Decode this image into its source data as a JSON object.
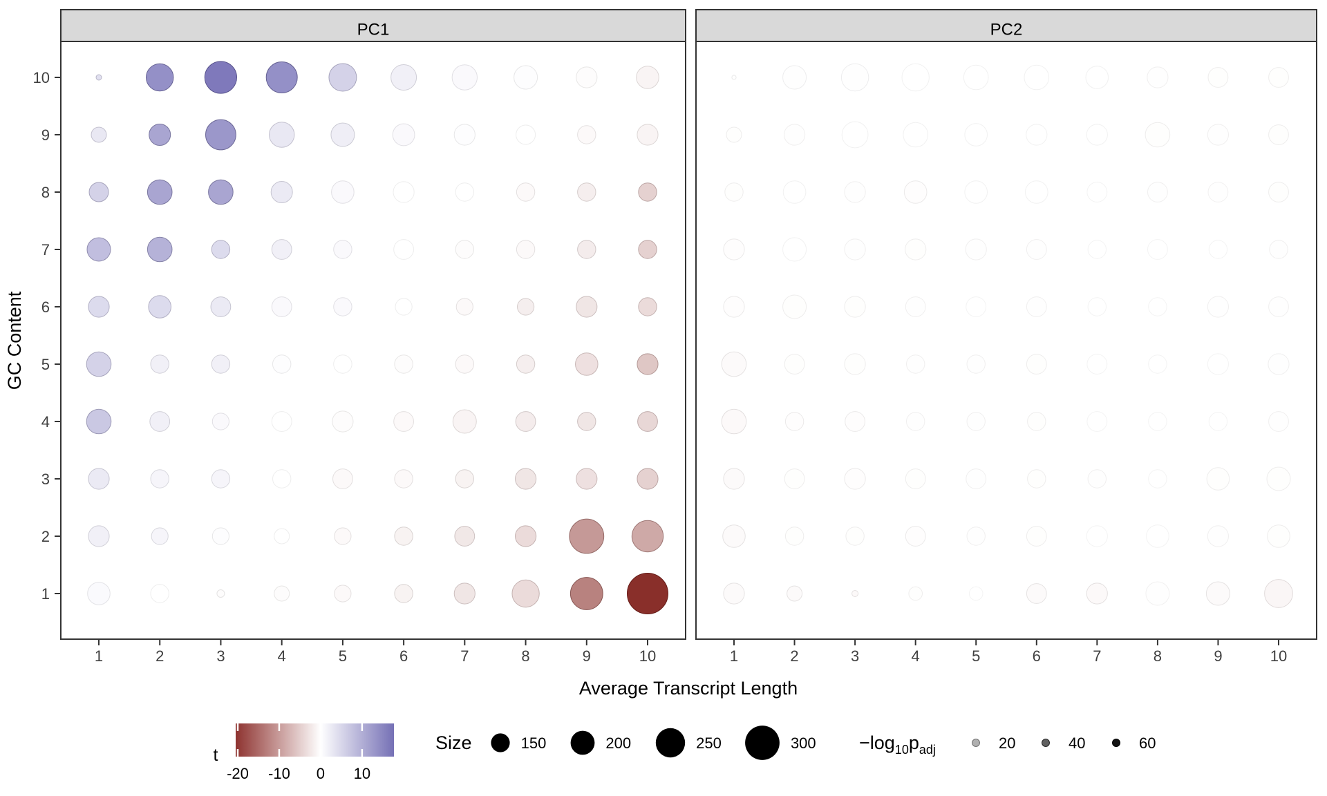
{
  "figure": {
    "facets": [
      "PC1",
      "PC2"
    ],
    "x_label": "Average Transcript Length",
    "y_label": "GC Content",
    "x_ticks": [
      "1",
      "2",
      "3",
      "4",
      "5",
      "6",
      "7",
      "8",
      "9",
      "10"
    ],
    "y_ticks": [
      "10",
      "9",
      "8",
      "7",
      "6",
      "5",
      "4",
      "3",
      "2",
      "1"
    ]
  },
  "legend": {
    "t": {
      "label": "t",
      "ticks": [
        -20,
        -10,
        0,
        10
      ],
      "domain": [
        -20.5,
        17.7
      ],
      "neg_color": "#8e3330",
      "mid_color": "#ffffff",
      "pos_color": "#7570b5"
    },
    "size": {
      "label": "Size",
      "items": [
        150,
        200,
        250,
        300
      ]
    },
    "alpha": {
      "label_parts": {
        "minus": "−log",
        "sub10": "10",
        "p": "p",
        "subadj": "adj"
      },
      "items": [
        20,
        40,
        60
      ]
    }
  },
  "colors": {
    "strip_bg": "#d9d9d9",
    "panel_border": "#333333",
    "tick_text": "#404040",
    "axis_text": "#000000",
    "legend_dot": "#000000"
  },
  "chart_data": {
    "type": "scatter",
    "subtype": "bubble-grid-facets",
    "x_values": [
      1,
      2,
      3,
      4,
      5,
      6,
      7,
      8,
      9,
      10
    ],
    "y_values_desc": [
      10,
      9,
      8,
      7,
      6,
      5,
      4,
      3,
      2,
      1
    ],
    "point_format": [
      "size",
      "t",
      "neg_log10_padj"
    ],
    "bubble_color_scale": {
      "neg": "#83241f",
      "zero": "#ffffff",
      "pos": "#6f69b3",
      "t_neg_min": -21,
      "t_pos_max": 16
    },
    "panels": [
      {
        "name": "PC1",
        "rows_y_desc": [
          [
            [
              22,
              6,
              36
            ],
            [
              230,
              14,
              55
            ],
            [
              275,
              16,
              58
            ],
            [
              268,
              14,
              55
            ],
            [
              235,
              8,
              39
            ],
            [
              215,
              4,
              26
            ],
            [
              210,
              2,
              19
            ],
            [
              195,
              1,
              16
            ],
            [
              170,
              -1,
              16
            ],
            [
              185,
              -3,
              23
            ]
          ],
          [
            [
              115,
              5,
              32
            ],
            [
              175,
              12,
              52
            ],
            [
              260,
              13,
              55
            ],
            [
              210,
              5,
              32
            ],
            [
              195,
              4,
              29
            ],
            [
              180,
              2,
              19
            ],
            [
              170,
              1,
              16
            ],
            [
              155,
              0,
              13
            ],
            [
              145,
              -2,
              19
            ],
            [
              170,
              -3,
              23
            ]
          ],
          [
            [
              155,
              8,
              39
            ],
            [
              205,
              12,
              52
            ],
            [
              205,
              12,
              52
            ],
            [
              175,
              5,
              29
            ],
            [
              185,
              2,
              19
            ],
            [
              170,
              0,
              13
            ],
            [
              145,
              0,
              13
            ],
            [
              145,
              -2,
              19
            ],
            [
              145,
              -4,
              26
            ],
            [
              145,
              -8,
              36
            ]
          ],
          [
            [
              195,
              10,
              45
            ],
            [
              205,
              11,
              49
            ],
            [
              145,
              7,
              36
            ],
            [
              160,
              4,
              26
            ],
            [
              145,
              2,
              19
            ],
            [
              160,
              0,
              13
            ],
            [
              145,
              -1,
              16
            ],
            [
              145,
              -2,
              19
            ],
            [
              145,
              -4,
              29
            ],
            [
              145,
              -8,
              36
            ]
          ],
          [
            [
              170,
              7,
              36
            ],
            [
              185,
              7,
              36
            ],
            [
              160,
              5,
              29
            ],
            [
              160,
              2,
              19
            ],
            [
              145,
              2,
              19
            ],
            [
              130,
              0,
              13
            ],
            [
              130,
              -2,
              19
            ],
            [
              130,
              -4,
              26
            ],
            [
              170,
              -5,
              32
            ],
            [
              145,
              -7,
              32
            ]
          ],
          [
            [
              205,
              8,
              39
            ],
            [
              145,
              4,
              26
            ],
            [
              145,
              4,
              26
            ],
            [
              145,
              1,
              16
            ],
            [
              145,
              0,
              13
            ],
            [
              145,
              -1,
              16
            ],
            [
              145,
              -2,
              19
            ],
            [
              145,
              -4,
              26
            ],
            [
              185,
              -6,
              32
            ],
            [
              170,
              -9,
              39
            ]
          ],
          [
            [
              205,
              9,
              42
            ],
            [
              160,
              4,
              26
            ],
            [
              130,
              2,
              19
            ],
            [
              160,
              0,
              13
            ],
            [
              170,
              -1,
              16
            ],
            [
              160,
              -2,
              19
            ],
            [
              195,
              -3,
              23
            ],
            [
              160,
              -4,
              29
            ],
            [
              145,
              -5,
              32
            ],
            [
              160,
              -7,
              36
            ]
          ],
          [
            [
              170,
              5,
              29
            ],
            [
              145,
              3,
              23
            ],
            [
              145,
              3,
              23
            ],
            [
              145,
              0,
              13
            ],
            [
              160,
              -2,
              19
            ],
            [
              145,
              -2,
              19
            ],
            [
              145,
              -3,
              26
            ],
            [
              170,
              -5,
              32
            ],
            [
              170,
              -6,
              32
            ],
            [
              170,
              -8,
              36
            ]
          ],
          [
            [
              170,
              4,
              26
            ],
            [
              130,
              3,
              23
            ],
            [
              130,
              1,
              16
            ],
            [
              115,
              0,
              13
            ],
            [
              130,
              -2,
              19
            ],
            [
              145,
              -3,
              26
            ],
            [
              160,
              -5,
              29
            ],
            [
              170,
              -7,
              32
            ],
            [
              300,
              -13,
              49
            ],
            [
              270,
              -12,
              45
            ]
          ],
          [
            [
              185,
              2,
              16
            ],
            [
              145,
              0,
              13
            ],
            [
              42,
              -1,
              19
            ],
            [
              115,
              -1,
              16
            ],
            [
              130,
              -2,
              19
            ],
            [
              145,
              -3,
              26
            ],
            [
              170,
              -5,
              32
            ],
            [
              230,
              -7,
              32
            ],
            [
              280,
              -15,
              52
            ],
            [
              360,
              -21,
              62
            ]
          ]
        ]
      },
      {
        "name": "PC2",
        "rows_y_desc": [
          [
            [
              10,
              0,
              19
            ],
            [
              195,
              1,
              10
            ],
            [
              230,
              1,
              10
            ],
            [
              230,
              0,
              8
            ],
            [
              205,
              0,
              8
            ],
            [
              205,
              0,
              8
            ],
            [
              185,
              0,
              8
            ],
            [
              170,
              -1,
              8
            ],
            [
              160,
              -1,
              10
            ],
            [
              160,
              -1,
              10
            ]
          ],
          [
            [
              115,
              -1,
              10
            ],
            [
              170,
              -1,
              8
            ],
            [
              220,
              0,
              8
            ],
            [
              205,
              0,
              8
            ],
            [
              185,
              0,
              8
            ],
            [
              170,
              0,
              8
            ],
            [
              170,
              0,
              8
            ],
            [
              205,
              -1,
              10
            ],
            [
              170,
              -1,
              8
            ],
            [
              160,
              -1,
              10
            ]
          ],
          [
            [
              145,
              -1,
              10
            ],
            [
              185,
              0,
              8
            ],
            [
              170,
              -1,
              8
            ],
            [
              185,
              -1,
              13
            ],
            [
              185,
              0,
              8
            ],
            [
              185,
              0,
              8
            ],
            [
              160,
              0,
              6
            ],
            [
              160,
              -1,
              8
            ],
            [
              160,
              -1,
              6
            ],
            [
              160,
              -1,
              10
            ]
          ],
          [
            [
              170,
              -1,
              13
            ],
            [
              195,
              0,
              8
            ],
            [
              170,
              -1,
              8
            ],
            [
              170,
              -1,
              10
            ],
            [
              170,
              -1,
              8
            ],
            [
              160,
              -1,
              8
            ],
            [
              145,
              0,
              6
            ],
            [
              160,
              0,
              6
            ],
            [
              145,
              0,
              6
            ],
            [
              145,
              -1,
              8
            ]
          ],
          [
            [
              170,
              -1,
              13
            ],
            [
              195,
              -1,
              10
            ],
            [
              170,
              -1,
              10
            ],
            [
              160,
              -1,
              8
            ],
            [
              160,
              0,
              6
            ],
            [
              160,
              -1,
              8
            ],
            [
              145,
              0,
              6
            ],
            [
              145,
              0,
              6
            ],
            [
              170,
              -1,
              8
            ],
            [
              160,
              -1,
              8
            ]
          ],
          [
            [
              205,
              -2,
              16
            ],
            [
              160,
              -1,
              10
            ],
            [
              170,
              -1,
              10
            ],
            [
              145,
              -1,
              8
            ],
            [
              145,
              -1,
              8
            ],
            [
              160,
              -1,
              10
            ],
            [
              160,
              0,
              6
            ],
            [
              145,
              0,
              6
            ],
            [
              170,
              0,
              6
            ],
            [
              170,
              -1,
              8
            ]
          ],
          [
            [
              205,
              -2,
              19
            ],
            [
              145,
              -1,
              13
            ],
            [
              160,
              -1,
              13
            ],
            [
              145,
              -1,
              8
            ],
            [
              145,
              -1,
              8
            ],
            [
              145,
              -1,
              10
            ],
            [
              160,
              0,
              6
            ],
            [
              145,
              0,
              6
            ],
            [
              145,
              0,
              6
            ],
            [
              160,
              -1,
              8
            ]
          ],
          [
            [
              170,
              -2,
              16
            ],
            [
              160,
              -1,
              10
            ],
            [
              170,
              -1,
              13
            ],
            [
              160,
              -1,
              10
            ],
            [
              160,
              -1,
              8
            ],
            [
              145,
              -1,
              10
            ],
            [
              145,
              -1,
              8
            ],
            [
              145,
              0,
              6
            ],
            [
              185,
              -1,
              10
            ],
            [
              195,
              -1,
              10
            ]
          ],
          [
            [
              185,
              -2,
              16
            ],
            [
              145,
              -1,
              10
            ],
            [
              145,
              -1,
              10
            ],
            [
              160,
              -1,
              13
            ],
            [
              145,
              -1,
              8
            ],
            [
              160,
              -1,
              10
            ],
            [
              170,
              0,
              6
            ],
            [
              185,
              0,
              6
            ],
            [
              170,
              -1,
              8
            ],
            [
              185,
              -1,
              10
            ]
          ],
          [
            [
              170,
              -2,
              16
            ],
            [
              115,
              -2,
              16
            ],
            [
              29,
              -2,
              19
            ],
            [
              100,
              -1,
              10
            ],
            [
              100,
              0,
              6
            ],
            [
              160,
              -2,
              16
            ],
            [
              170,
              -2,
              19
            ],
            [
              195,
              -1,
              6
            ],
            [
              195,
              -2,
              16
            ],
            [
              240,
              -3,
              19
            ]
          ]
        ]
      }
    ]
  }
}
